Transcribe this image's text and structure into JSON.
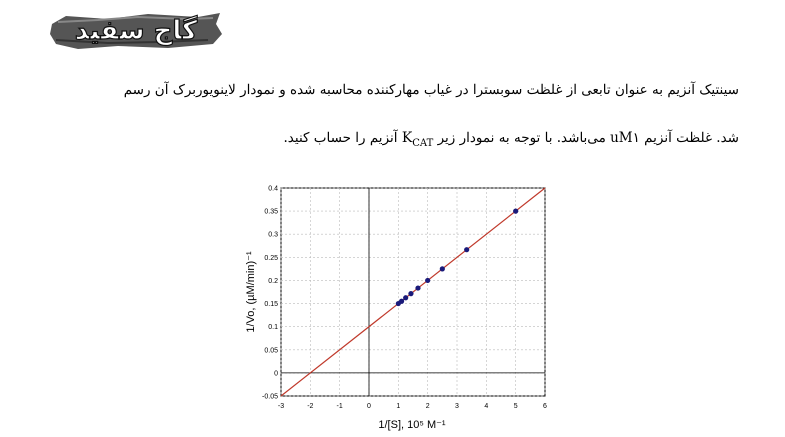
{
  "logo": {
    "text": "گاج سفید"
  },
  "question": {
    "line1": "سینتیک آنزیم به عنوان تابعی از غلظت سوبسترا در غیاب مهارکننده محاسبه شده و نمودار لاینویوربرک آن رسم",
    "line2_pre": "شد. غلظت آنزیم ",
    "enzyme_conc": "uM۱",
    "line2_mid": " می‌باشد. با توجه به نمودار زیر ",
    "kcat_main": "K",
    "kcat_sub": "CAT",
    "line2_post": " آنزیم را حساب کنید."
  },
  "chart_data": {
    "type": "scatter",
    "xlabel": "1/[S],  10⁵ M⁻¹",
    "ylabel": "1/Vo, (µM/min)⁻¹",
    "xlim": [
      -3,
      6
    ],
    "ylim": [
      -0.05,
      0.4
    ],
    "xticks": [
      -3,
      -2,
      -1,
      0,
      1,
      2,
      3,
      4,
      5,
      6
    ],
    "yticks": [
      -0.05,
      0,
      0.05,
      0.1,
      0.15,
      0.2,
      0.25,
      0.3,
      0.35,
      0.4
    ],
    "xtick_labels": [
      "-3",
      "-2",
      "-1",
      "0",
      "1",
      "2",
      "3",
      "4",
      "5",
      "6"
    ],
    "ytick_labels": [
      "-0.05",
      "0",
      "0.05",
      "0.1",
      "0.15",
      "0.2",
      "0.25",
      "0.3",
      "0.35",
      "0.4"
    ],
    "grid": true,
    "points": [
      {
        "x": 1.0,
        "y": 0.15
      },
      {
        "x": 1.11,
        "y": 0.155
      },
      {
        "x": 1.25,
        "y": 0.1625
      },
      {
        "x": 1.43,
        "y": 0.1715
      },
      {
        "x": 1.67,
        "y": 0.1835
      },
      {
        "x": 2.0,
        "y": 0.2
      },
      {
        "x": 2.5,
        "y": 0.225
      },
      {
        "x": 3.33,
        "y": 0.2665
      },
      {
        "x": 5.0,
        "y": 0.35
      }
    ],
    "fit_line": {
      "slope": 0.05,
      "intercept": 0.1,
      "color": "#c0392b"
    },
    "point_color": "#1a1a7a"
  }
}
